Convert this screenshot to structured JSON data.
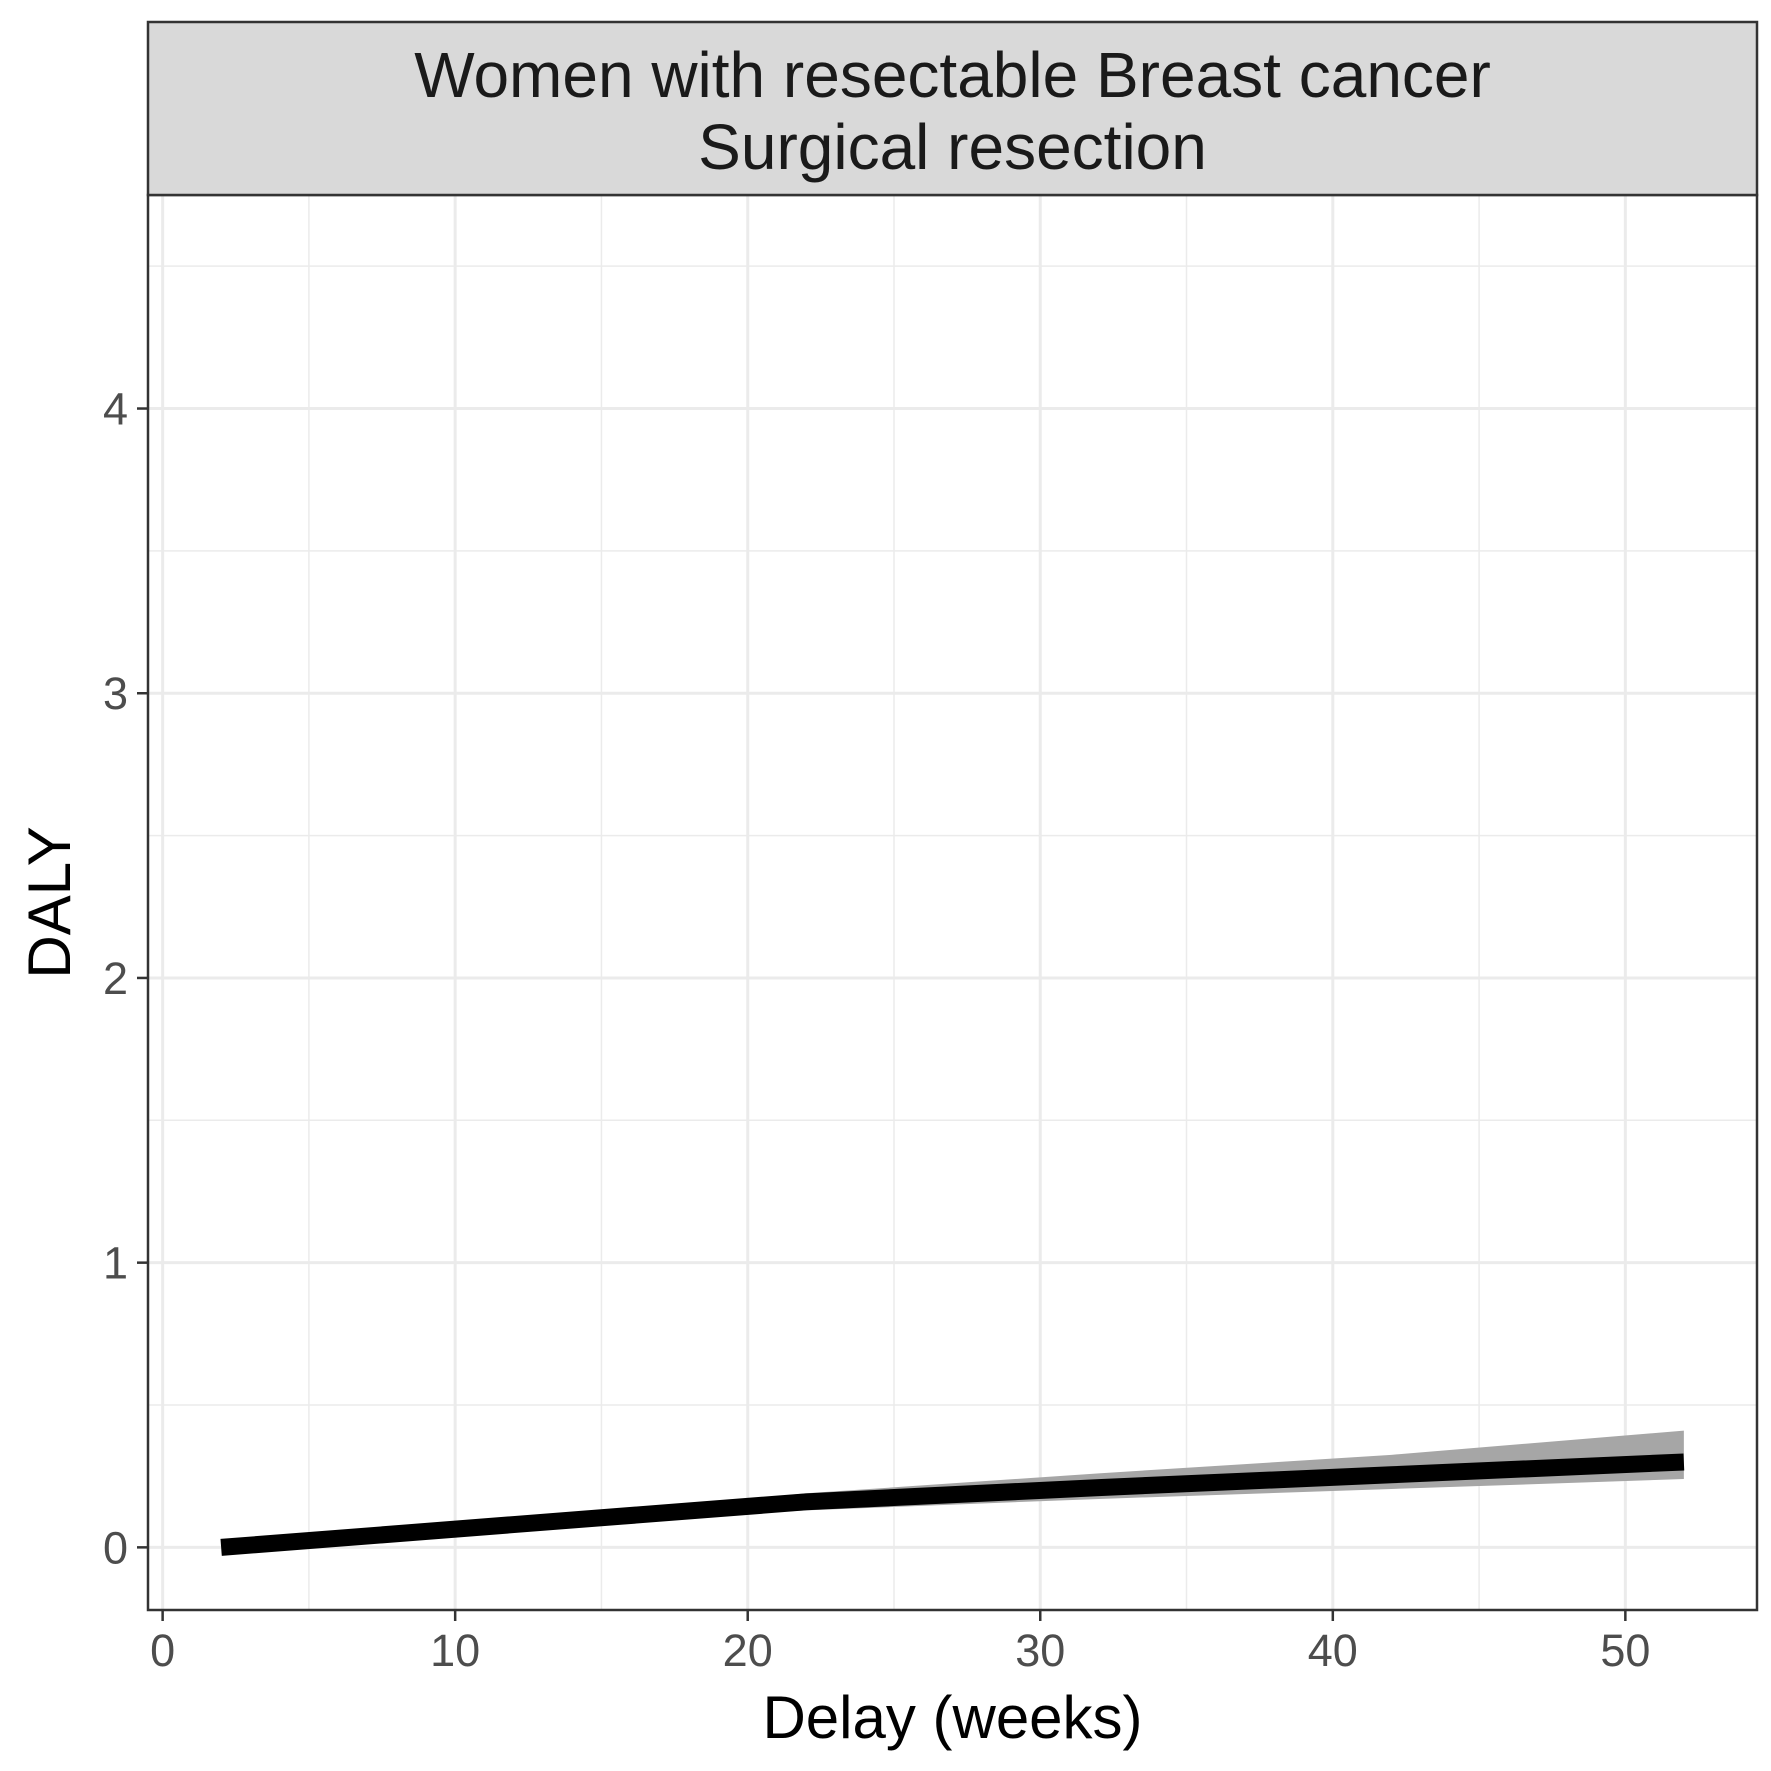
{
  "chart_data": {
    "type": "line",
    "title_lines": [
      "Women with resectable Breast cancer",
      "Surgical resection"
    ],
    "xlabel": "Delay (weeks)",
    "ylabel": "DALY",
    "xlim": [
      -0.5,
      54.5
    ],
    "ylim": [
      -0.22,
      4.75
    ],
    "x_ticks": [
      0,
      10,
      20,
      30,
      40,
      50
    ],
    "x_tick_labels": [
      "0",
      "10",
      "20",
      "30",
      "40",
      "50"
    ],
    "y_ticks": [
      0,
      1,
      2,
      3,
      4
    ],
    "y_tick_labels": [
      "0",
      "1",
      "2",
      "3",
      "4"
    ],
    "grid": true,
    "series": [
      {
        "x": [
          2,
          12,
          22,
          32,
          42,
          52
        ],
        "y": [
          0,
          0.08,
          0.16,
          0.21,
          0.255,
          0.3
        ],
        "lower": [
          0,
          0.075,
          0.13,
          0.17,
          0.205,
          0.24
        ],
        "upper": [
          0,
          0.085,
          0.19,
          0.26,
          0.325,
          0.41
        ]
      }
    ]
  },
  "colors": {
    "line": "#000000",
    "ribbon": "#a6a6a6",
    "strip_fill": "#d9d9d9",
    "grid": "#ebebeb",
    "panel_border": "#333333"
  }
}
